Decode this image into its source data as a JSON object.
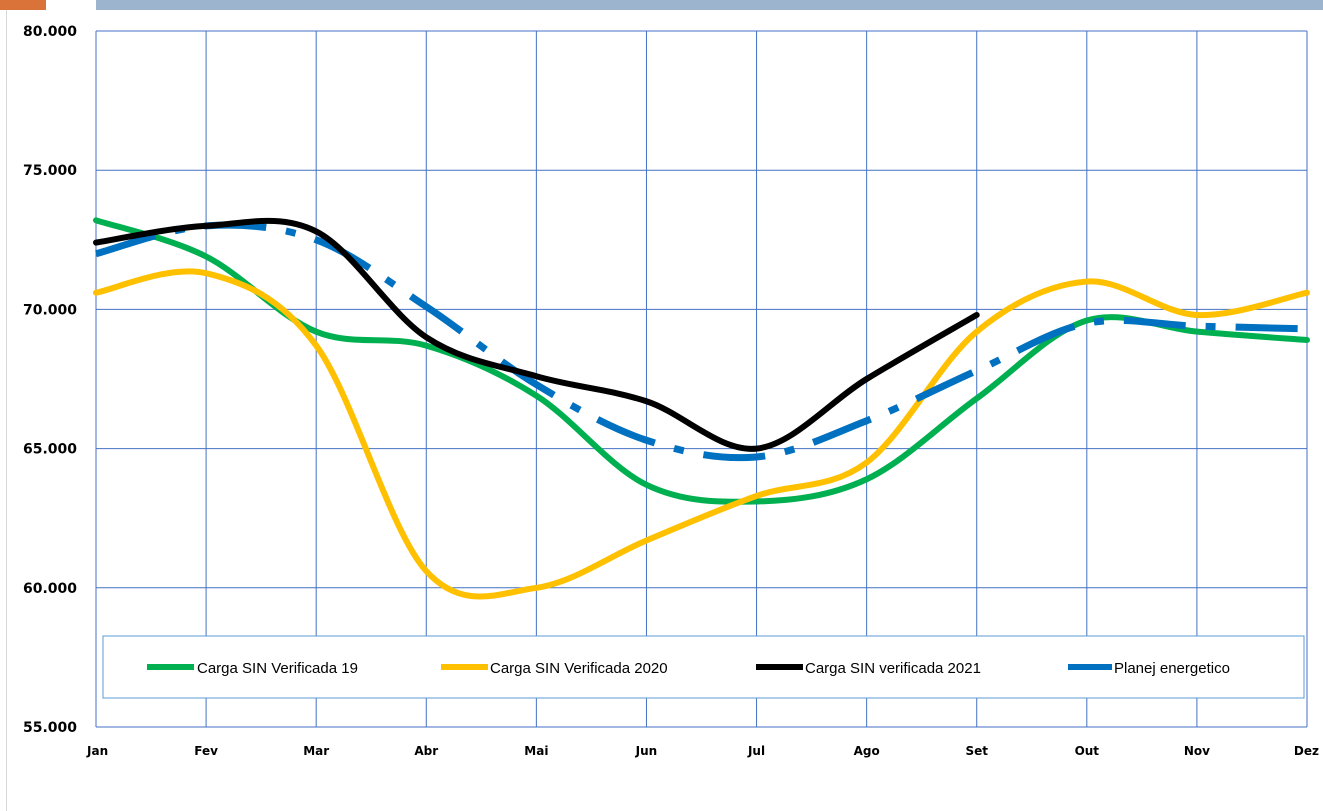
{
  "chart_data": {
    "type": "line",
    "title": "",
    "xlabel": "",
    "ylabel": "",
    "categories": [
      "Jan",
      "Fev",
      "Mar",
      "Abr",
      "Mai",
      "Jun",
      "Jul",
      "Ago",
      "Set",
      "Out",
      "Nov",
      "Dez"
    ],
    "y_tick_labels": [
      "55.000",
      "60.000",
      "65.000",
      "70.000",
      "75.000",
      "80.000"
    ],
    "ylim": [
      55000,
      80000
    ],
    "grid": true,
    "legend_position": "bottom-inside",
    "series": [
      {
        "name": "Carga SIN Verificada 19",
        "color": "#00b050",
        "style": "solid",
        "values": [
          73200,
          71900,
          69200,
          68700,
          66900,
          63700,
          63100,
          63900,
          66800,
          69600,
          69200,
          68900
        ]
      },
      {
        "name": "Carga SIN Verificada 2020",
        "color": "#ffc000",
        "style": "solid",
        "values": [
          70600,
          71300,
          68700,
          60600,
          60000,
          61700,
          63300,
          64500,
          69200,
          71000,
          69800,
          70600
        ]
      },
      {
        "name": "Carga SIN verificada 2021",
        "color": "#000000",
        "style": "solid",
        "values": [
          72400,
          73000,
          72800,
          69000,
          67600,
          66700,
          65000,
          67500,
          69800,
          null,
          null,
          null
        ]
      },
      {
        "name": "Planej energetico",
        "color": "#0070c0",
        "style": "dashdot",
        "values": [
          72000,
          73000,
          72500,
          70100,
          67300,
          65300,
          64700,
          66000,
          67800,
          69500,
          69400,
          69300
        ]
      }
    ]
  }
}
